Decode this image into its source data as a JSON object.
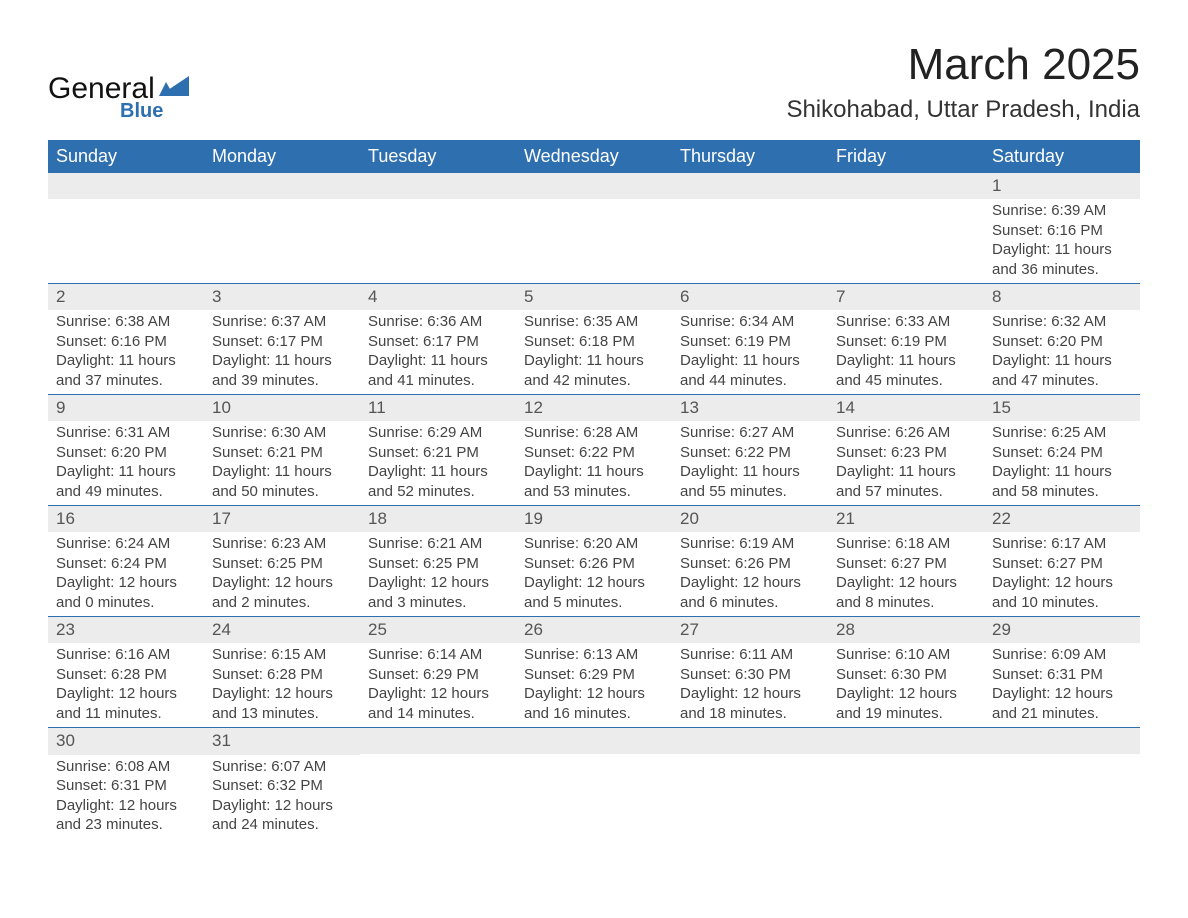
{
  "brand": {
    "name_part1": "General",
    "name_part2": "Blue",
    "color_primary": "#2e6fb0"
  },
  "header": {
    "month_title": "March 2025",
    "location": "Shikohabad, Uttar Pradesh, India"
  },
  "calendar": {
    "weekdays": [
      "Sunday",
      "Monday",
      "Tuesday",
      "Wednesday",
      "Thursday",
      "Friday",
      "Saturday"
    ],
    "header_bg": "#2e6fb0",
    "header_text_color": "#ffffff",
    "row_separator_color": "#2e6fb0",
    "daynum_bg": "#ececec",
    "body_text_color": "#444444",
    "weeks": [
      [
        null,
        null,
        null,
        null,
        null,
        null,
        {
          "day": "1",
          "sunrise": "Sunrise: 6:39 AM",
          "sunset": "Sunset: 6:16 PM",
          "daylight1": "Daylight: 11 hours",
          "daylight2": "and 36 minutes."
        }
      ],
      [
        {
          "day": "2",
          "sunrise": "Sunrise: 6:38 AM",
          "sunset": "Sunset: 6:16 PM",
          "daylight1": "Daylight: 11 hours",
          "daylight2": "and 37 minutes."
        },
        {
          "day": "3",
          "sunrise": "Sunrise: 6:37 AM",
          "sunset": "Sunset: 6:17 PM",
          "daylight1": "Daylight: 11 hours",
          "daylight2": "and 39 minutes."
        },
        {
          "day": "4",
          "sunrise": "Sunrise: 6:36 AM",
          "sunset": "Sunset: 6:17 PM",
          "daylight1": "Daylight: 11 hours",
          "daylight2": "and 41 minutes."
        },
        {
          "day": "5",
          "sunrise": "Sunrise: 6:35 AM",
          "sunset": "Sunset: 6:18 PM",
          "daylight1": "Daylight: 11 hours",
          "daylight2": "and 42 minutes."
        },
        {
          "day": "6",
          "sunrise": "Sunrise: 6:34 AM",
          "sunset": "Sunset: 6:19 PM",
          "daylight1": "Daylight: 11 hours",
          "daylight2": "and 44 minutes."
        },
        {
          "day": "7",
          "sunrise": "Sunrise: 6:33 AM",
          "sunset": "Sunset: 6:19 PM",
          "daylight1": "Daylight: 11 hours",
          "daylight2": "and 45 minutes."
        },
        {
          "day": "8",
          "sunrise": "Sunrise: 6:32 AM",
          "sunset": "Sunset: 6:20 PM",
          "daylight1": "Daylight: 11 hours",
          "daylight2": "and 47 minutes."
        }
      ],
      [
        {
          "day": "9",
          "sunrise": "Sunrise: 6:31 AM",
          "sunset": "Sunset: 6:20 PM",
          "daylight1": "Daylight: 11 hours",
          "daylight2": "and 49 minutes."
        },
        {
          "day": "10",
          "sunrise": "Sunrise: 6:30 AM",
          "sunset": "Sunset: 6:21 PM",
          "daylight1": "Daylight: 11 hours",
          "daylight2": "and 50 minutes."
        },
        {
          "day": "11",
          "sunrise": "Sunrise: 6:29 AM",
          "sunset": "Sunset: 6:21 PM",
          "daylight1": "Daylight: 11 hours",
          "daylight2": "and 52 minutes."
        },
        {
          "day": "12",
          "sunrise": "Sunrise: 6:28 AM",
          "sunset": "Sunset: 6:22 PM",
          "daylight1": "Daylight: 11 hours",
          "daylight2": "and 53 minutes."
        },
        {
          "day": "13",
          "sunrise": "Sunrise: 6:27 AM",
          "sunset": "Sunset: 6:22 PM",
          "daylight1": "Daylight: 11 hours",
          "daylight2": "and 55 minutes."
        },
        {
          "day": "14",
          "sunrise": "Sunrise: 6:26 AM",
          "sunset": "Sunset: 6:23 PM",
          "daylight1": "Daylight: 11 hours",
          "daylight2": "and 57 minutes."
        },
        {
          "day": "15",
          "sunrise": "Sunrise: 6:25 AM",
          "sunset": "Sunset: 6:24 PM",
          "daylight1": "Daylight: 11 hours",
          "daylight2": "and 58 minutes."
        }
      ],
      [
        {
          "day": "16",
          "sunrise": "Sunrise: 6:24 AM",
          "sunset": "Sunset: 6:24 PM",
          "daylight1": "Daylight: 12 hours",
          "daylight2": "and 0 minutes."
        },
        {
          "day": "17",
          "sunrise": "Sunrise: 6:23 AM",
          "sunset": "Sunset: 6:25 PM",
          "daylight1": "Daylight: 12 hours",
          "daylight2": "and 2 minutes."
        },
        {
          "day": "18",
          "sunrise": "Sunrise: 6:21 AM",
          "sunset": "Sunset: 6:25 PM",
          "daylight1": "Daylight: 12 hours",
          "daylight2": "and 3 minutes."
        },
        {
          "day": "19",
          "sunrise": "Sunrise: 6:20 AM",
          "sunset": "Sunset: 6:26 PM",
          "daylight1": "Daylight: 12 hours",
          "daylight2": "and 5 minutes."
        },
        {
          "day": "20",
          "sunrise": "Sunrise: 6:19 AM",
          "sunset": "Sunset: 6:26 PM",
          "daylight1": "Daylight: 12 hours",
          "daylight2": "and 6 minutes."
        },
        {
          "day": "21",
          "sunrise": "Sunrise: 6:18 AM",
          "sunset": "Sunset: 6:27 PM",
          "daylight1": "Daylight: 12 hours",
          "daylight2": "and 8 minutes."
        },
        {
          "day": "22",
          "sunrise": "Sunrise: 6:17 AM",
          "sunset": "Sunset: 6:27 PM",
          "daylight1": "Daylight: 12 hours",
          "daylight2": "and 10 minutes."
        }
      ],
      [
        {
          "day": "23",
          "sunrise": "Sunrise: 6:16 AM",
          "sunset": "Sunset: 6:28 PM",
          "daylight1": "Daylight: 12 hours",
          "daylight2": "and 11 minutes."
        },
        {
          "day": "24",
          "sunrise": "Sunrise: 6:15 AM",
          "sunset": "Sunset: 6:28 PM",
          "daylight1": "Daylight: 12 hours",
          "daylight2": "and 13 minutes."
        },
        {
          "day": "25",
          "sunrise": "Sunrise: 6:14 AM",
          "sunset": "Sunset: 6:29 PM",
          "daylight1": "Daylight: 12 hours",
          "daylight2": "and 14 minutes."
        },
        {
          "day": "26",
          "sunrise": "Sunrise: 6:13 AM",
          "sunset": "Sunset: 6:29 PM",
          "daylight1": "Daylight: 12 hours",
          "daylight2": "and 16 minutes."
        },
        {
          "day": "27",
          "sunrise": "Sunrise: 6:11 AM",
          "sunset": "Sunset: 6:30 PM",
          "daylight1": "Daylight: 12 hours",
          "daylight2": "and 18 minutes."
        },
        {
          "day": "28",
          "sunrise": "Sunrise: 6:10 AM",
          "sunset": "Sunset: 6:30 PM",
          "daylight1": "Daylight: 12 hours",
          "daylight2": "and 19 minutes."
        },
        {
          "day": "29",
          "sunrise": "Sunrise: 6:09 AM",
          "sunset": "Sunset: 6:31 PM",
          "daylight1": "Daylight: 12 hours",
          "daylight2": "and 21 minutes."
        }
      ],
      [
        {
          "day": "30",
          "sunrise": "Sunrise: 6:08 AM",
          "sunset": "Sunset: 6:31 PM",
          "daylight1": "Daylight: 12 hours",
          "daylight2": "and 23 minutes."
        },
        {
          "day": "31",
          "sunrise": "Sunrise: 6:07 AM",
          "sunset": "Sunset: 6:32 PM",
          "daylight1": "Daylight: 12 hours",
          "daylight2": "and 24 minutes."
        },
        null,
        null,
        null,
        null,
        null
      ]
    ]
  }
}
